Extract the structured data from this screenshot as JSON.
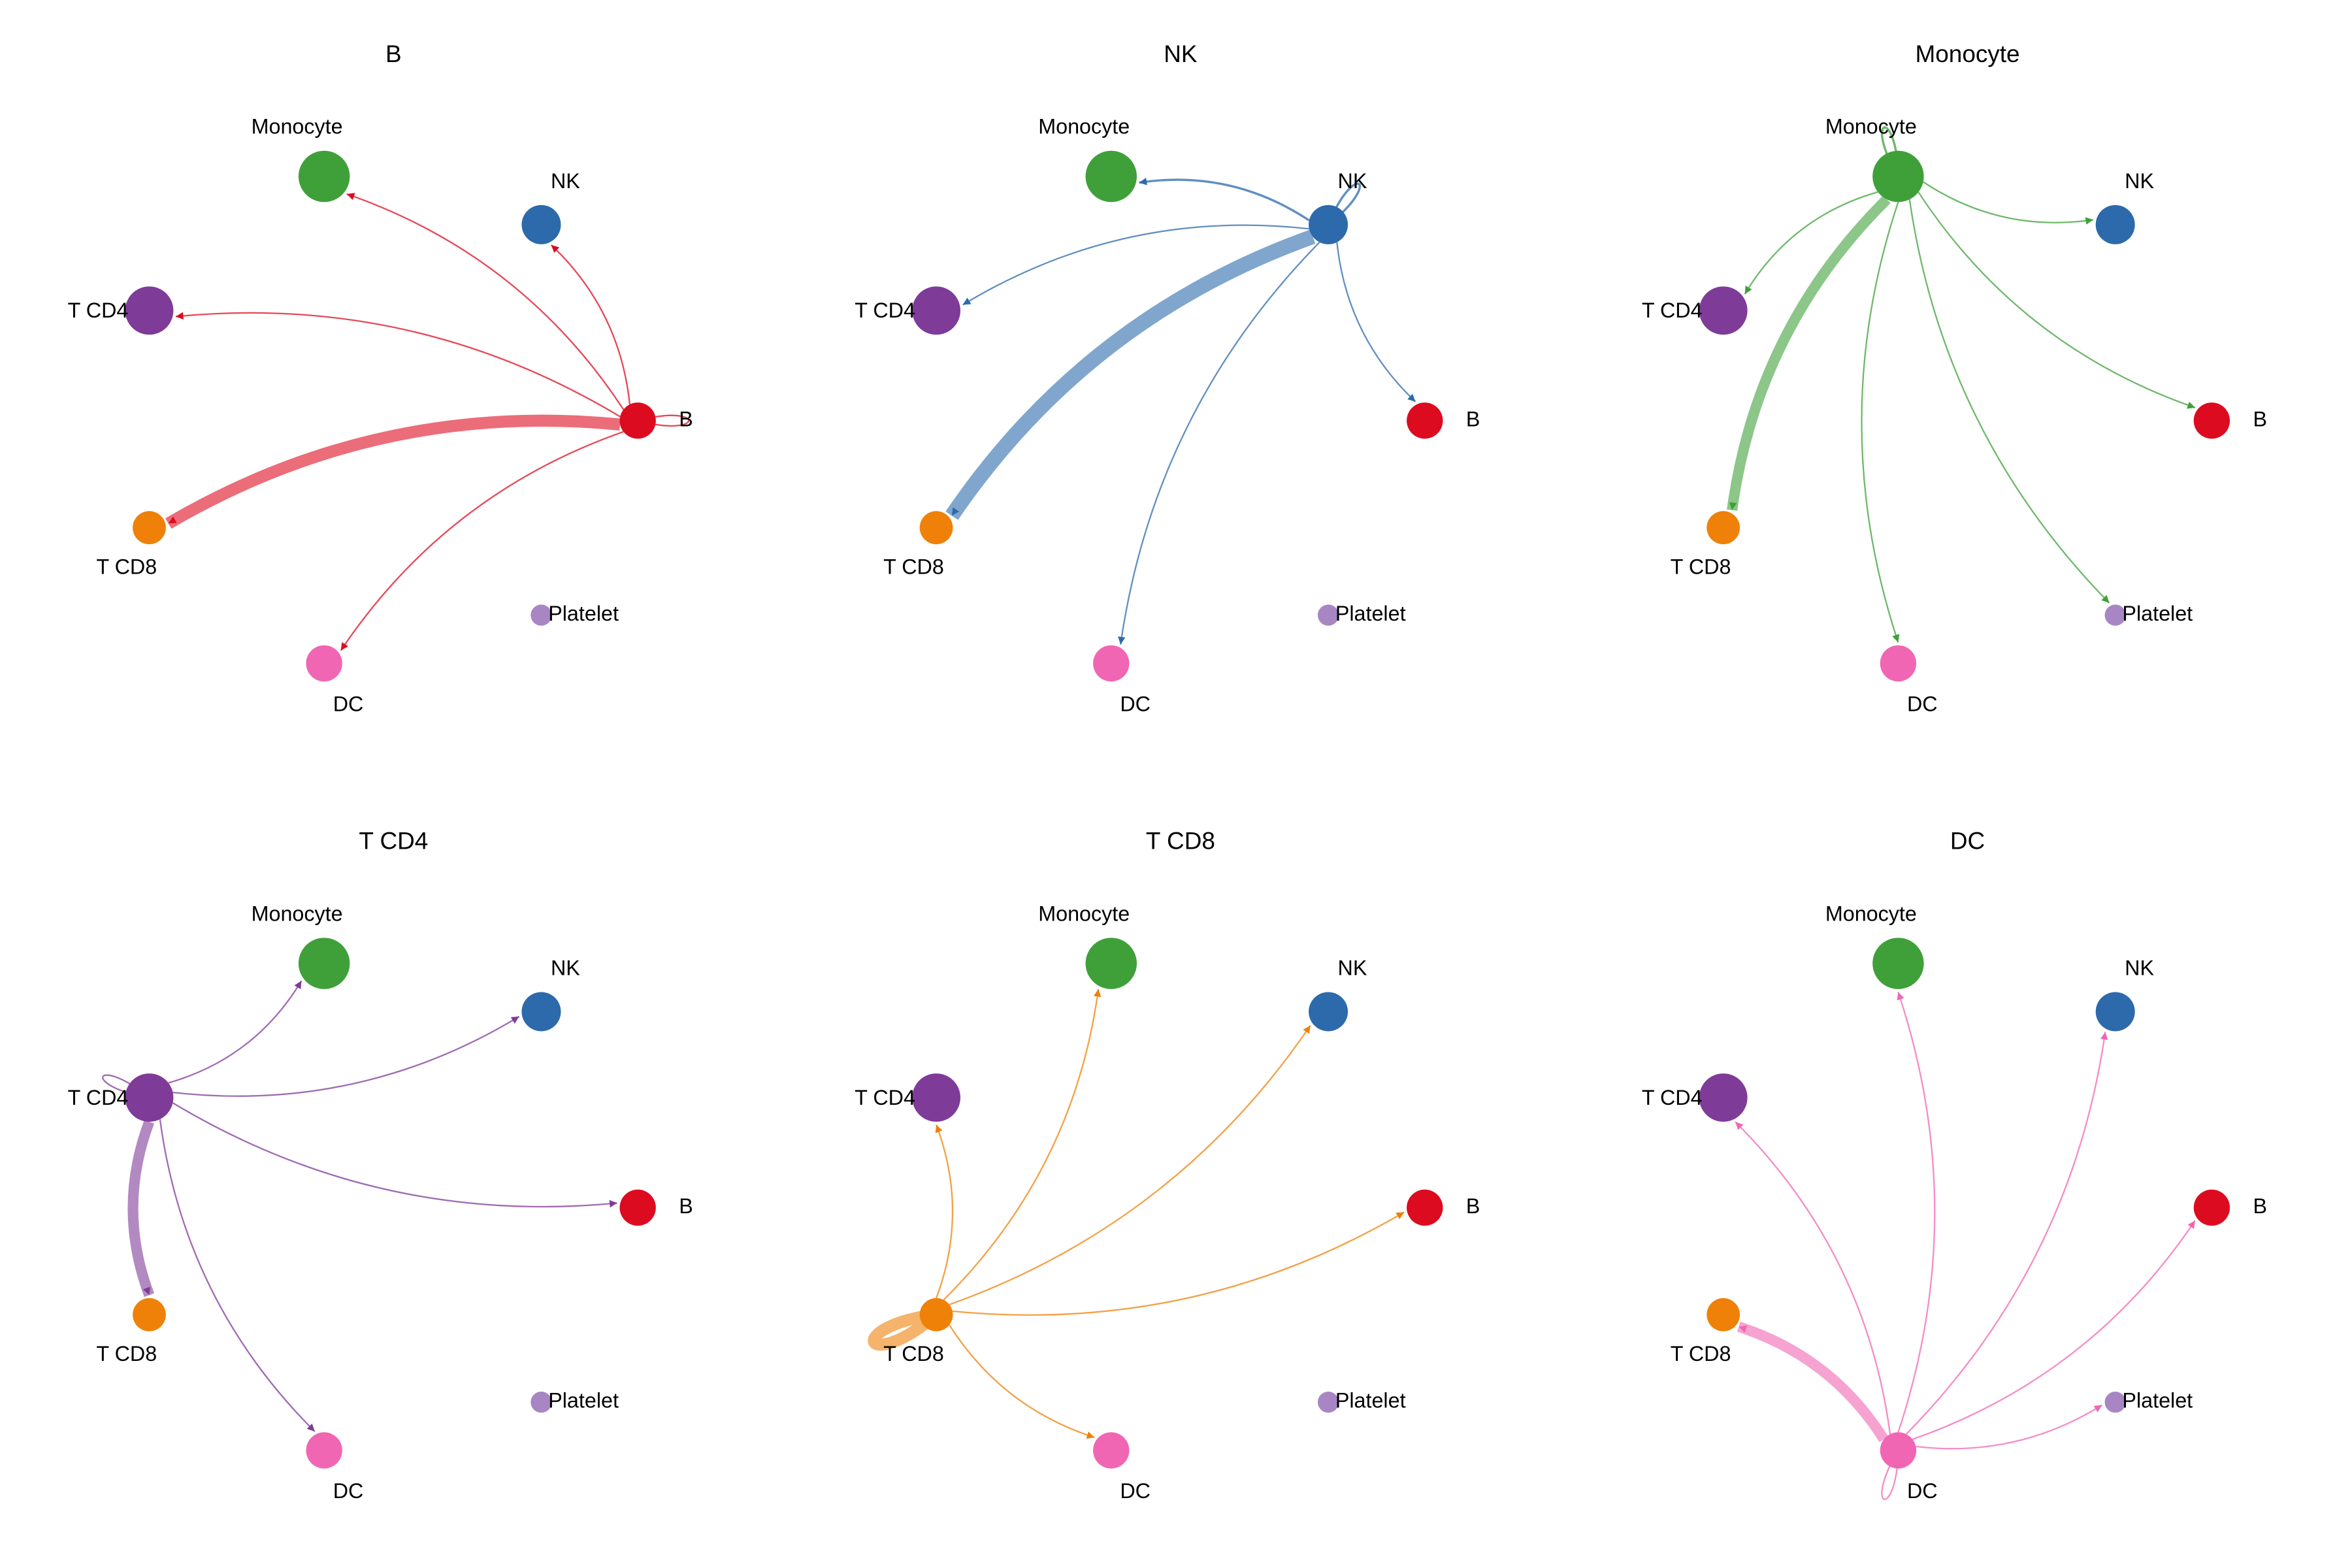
{
  "nodes": [
    {
      "label": "Monocyte",
      "color": "#3fa03a",
      "size": 17
    },
    {
      "label": "NK",
      "color": "#2c6aab",
      "size": 13
    },
    {
      "label": "T CD4",
      "color": "#7f3b98",
      "size": 16
    },
    {
      "label": "B",
      "color": "#dd0b1f",
      "size": 12
    },
    {
      "label": "T CD8",
      "color": "#ef8108",
      "size": 11
    },
    {
      "label": "DC",
      "color": "#f066b3",
      "size": 12
    },
    {
      "label": "Platelet",
      "color": "#a886c4",
      "size": 7
    }
  ],
  "panels": [
    {
      "title": "B",
      "source": "B",
      "edges": [
        {
          "target": "Monocyte",
          "weight": 1
        },
        {
          "target": "NK",
          "weight": 1
        },
        {
          "target": "T CD4",
          "weight": 1
        },
        {
          "target": "B",
          "weight": 1
        },
        {
          "target": "T CD8",
          "weight": 8
        },
        {
          "target": "DC",
          "weight": 1
        }
      ]
    },
    {
      "title": "NK",
      "source": "NK",
      "edges": [
        {
          "target": "Monocyte",
          "weight": 1.5
        },
        {
          "target": "NK",
          "weight": 1.5
        },
        {
          "target": "T CD4",
          "weight": 1
        },
        {
          "target": "B",
          "weight": 1
        },
        {
          "target": "T CD8",
          "weight": 10
        },
        {
          "target": "DC",
          "weight": 1
        }
      ]
    },
    {
      "title": "Monocyte",
      "source": "Monocyte",
      "edges": [
        {
          "target": "Monocyte",
          "weight": 1.5
        },
        {
          "target": "NK",
          "weight": 1
        },
        {
          "target": "T CD4",
          "weight": 1
        },
        {
          "target": "B",
          "weight": 1
        },
        {
          "target": "T CD8",
          "weight": 7
        },
        {
          "target": "DC",
          "weight": 1
        },
        {
          "target": "Platelet",
          "weight": 1
        }
      ]
    },
    {
      "title": "T CD4",
      "source": "T CD4",
      "edges": [
        {
          "target": "Monocyte",
          "weight": 1
        },
        {
          "target": "NK",
          "weight": 1
        },
        {
          "target": "T CD4",
          "weight": 1
        },
        {
          "target": "B",
          "weight": 1
        },
        {
          "target": "T CD8",
          "weight": 7
        },
        {
          "target": "DC",
          "weight": 1
        }
      ]
    },
    {
      "title": "T CD8",
      "source": "T CD8",
      "edges": [
        {
          "target": "Monocyte",
          "weight": 1
        },
        {
          "target": "NK",
          "weight": 1
        },
        {
          "target": "T CD4",
          "weight": 1
        },
        {
          "target": "B",
          "weight": 1
        },
        {
          "target": "T CD8",
          "weight": 8
        },
        {
          "target": "DC",
          "weight": 1
        }
      ]
    },
    {
      "title": "DC",
      "source": "DC",
      "edges": [
        {
          "target": "Monocyte",
          "weight": 1
        },
        {
          "target": "NK",
          "weight": 1
        },
        {
          "target": "T CD4",
          "weight": 1
        },
        {
          "target": "B",
          "weight": 1
        },
        {
          "target": "T CD8",
          "weight": 7
        },
        {
          "target": "DC",
          "weight": 1
        },
        {
          "target": "Platelet",
          "weight": 1
        }
      ]
    }
  ]
}
